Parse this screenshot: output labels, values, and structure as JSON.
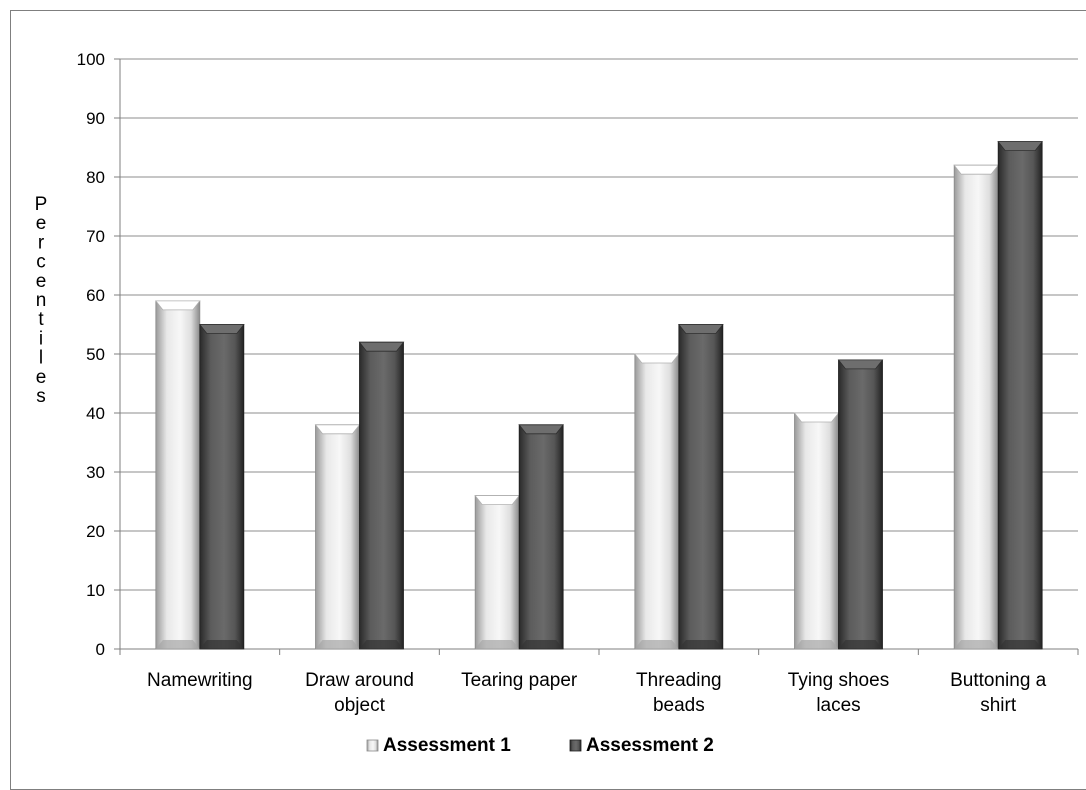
{
  "chart_data": {
    "type": "bar",
    "title": "",
    "xlabel": "",
    "ylabel": "Percentiles",
    "ylim": [
      0,
      100
    ],
    "yticks": [
      0,
      10,
      20,
      30,
      40,
      50,
      60,
      70,
      80,
      90,
      100
    ],
    "grid": true,
    "legend_position": "bottom",
    "categories": [
      [
        "Namewriting"
      ],
      [
        "Draw around",
        "object"
      ],
      [
        "Tearing paper"
      ],
      [
        "Threading",
        "beads"
      ],
      [
        "Tying shoes",
        "laces"
      ],
      [
        "Buttoning a",
        "shirt"
      ]
    ],
    "series": [
      {
        "name": "Assessment 1",
        "color": "#d9d9d9",
        "values": [
          59,
          38,
          26,
          50,
          40,
          82
        ]
      },
      {
        "name": "Assessment 2",
        "color": "#555555",
        "values": [
          55,
          52,
          38,
          55,
          49,
          86
        ]
      }
    ]
  }
}
